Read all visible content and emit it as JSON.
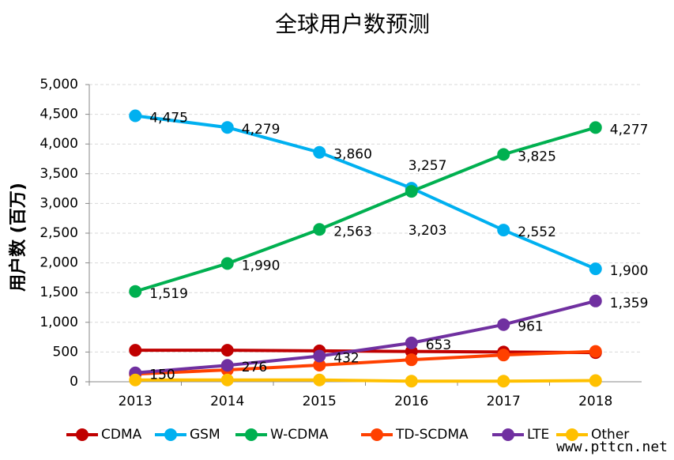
{
  "chart_data": {
    "type": "line",
    "title": "全球用户数预测",
    "y_label": "用户数 (百万)",
    "categories": [
      "2013",
      "2014",
      "2015",
      "2016",
      "2017",
      "2018"
    ],
    "ylim": [
      0,
      5000
    ],
    "yticks": [
      0,
      500,
      {
        "value": 1000,
        "label": "1,000"
      },
      {
        "value": 1500,
        "label": "1,500"
      },
      {
        "value": 2000,
        "label": "2,000"
      },
      {
        "value": 2500,
        "label": "2,500"
      },
      {
        "value": 3000,
        "label": "3,000"
      },
      {
        "value": 3500,
        "label": "3,500"
      },
      {
        "value": 4000,
        "label": "4,000"
      },
      {
        "value": 4500,
        "label": "4,500"
      },
      {
        "value": 5000,
        "label": "5,000"
      }
    ],
    "grid": true,
    "legend": "bottom",
    "series": [
      {
        "name": "CDMA",
        "color": "#c00000",
        "values": [
          530,
          530,
          520,
          510,
          500,
          490
        ]
      },
      {
        "name": "GSM",
        "color": "#00b0f0",
        "values": [
          4475,
          4279,
          3860,
          3257,
          2552,
          1900
        ],
        "value_labels": [
          "4,475",
          "4,279",
          "3,860",
          "3,257",
          "2,552",
          "1,900"
        ]
      },
      {
        "name": "W-CDMA",
        "color": "#00b050",
        "values": [
          1519,
          1990,
          2563,
          3203,
          3825,
          4277
        ],
        "value_labels": [
          "1,519",
          "1,990",
          "2,563",
          "3,203",
          "3,825",
          "4,277"
        ]
      },
      {
        "name": "TD-SCDMA",
        "color": "#ff4000",
        "values": [
          130,
          200,
          280,
          370,
          450,
          510
        ]
      },
      {
        "name": "LTE",
        "color": "#7030a0",
        "values": [
          150,
          276,
          432,
          653,
          961,
          1359
        ],
        "value_labels": [
          "150",
          "276",
          "432",
          "653",
          "961",
          "1,359"
        ]
      },
      {
        "name": "Other",
        "color": "#ffc000",
        "values": [
          30,
          30,
          30,
          10,
          10,
          20
        ]
      }
    ]
  },
  "watermark": "www.pttcn.net"
}
